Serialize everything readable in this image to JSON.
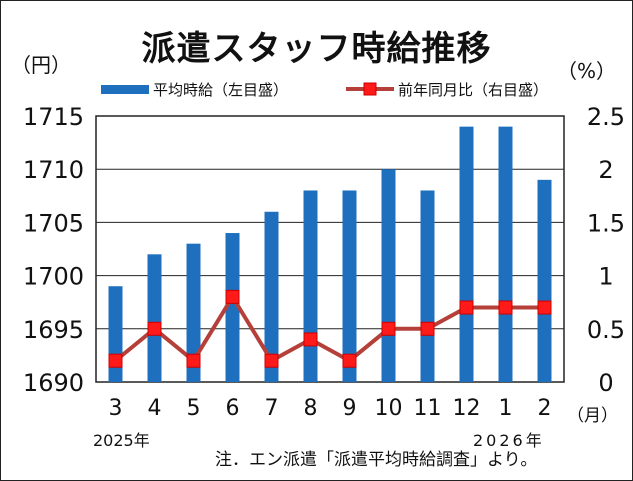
{
  "title": "派遣スタッフ時給推移",
  "units": {
    "left": "（円）",
    "right": "（%）",
    "month": "（月）"
  },
  "years": {
    "start": "2025年",
    "end": "2026年"
  },
  "note": "注．エン派遣「派遣平均時給調査」より。",
  "colors": {
    "bar": "#1f6fbf",
    "line": "#b5403a",
    "marker": "#ff1a1a",
    "grid": "#222222"
  },
  "chart_data": {
    "type": "bar+line",
    "title": "派遣スタッフ時給推移",
    "categories": [
      "3",
      "4",
      "5",
      "6",
      "7",
      "8",
      "9",
      "10",
      "11",
      "12",
      "1",
      "2"
    ],
    "series": [
      {
        "name": "平均時給（左目盛）",
        "type": "bar",
        "axis": "left",
        "values": [
          1699,
          1702,
          1703,
          1704,
          1706,
          1708,
          1708,
          1710,
          1708,
          1714,
          1714,
          1709
        ]
      },
      {
        "name": "前年同月比（右目盛）",
        "type": "line",
        "axis": "right",
        "values": [
          0.2,
          0.5,
          0.2,
          0.8,
          0.2,
          0.4,
          0.2,
          0.5,
          0.5,
          0.7,
          0.7,
          0.7
        ]
      }
    ],
    "y_left": {
      "min": 1690,
      "max": 1715,
      "ticks": [
        1690,
        1695,
        1700,
        1705,
        1710,
        1715
      ],
      "unit": "（円）"
    },
    "y_right": {
      "min": 0,
      "max": 2.5,
      "ticks": [
        0,
        0.5,
        1,
        1.5,
        2,
        2.5
      ],
      "unit": "（%）"
    },
    "xlabel": "（月）",
    "grid": true,
    "legend_position": "top"
  }
}
